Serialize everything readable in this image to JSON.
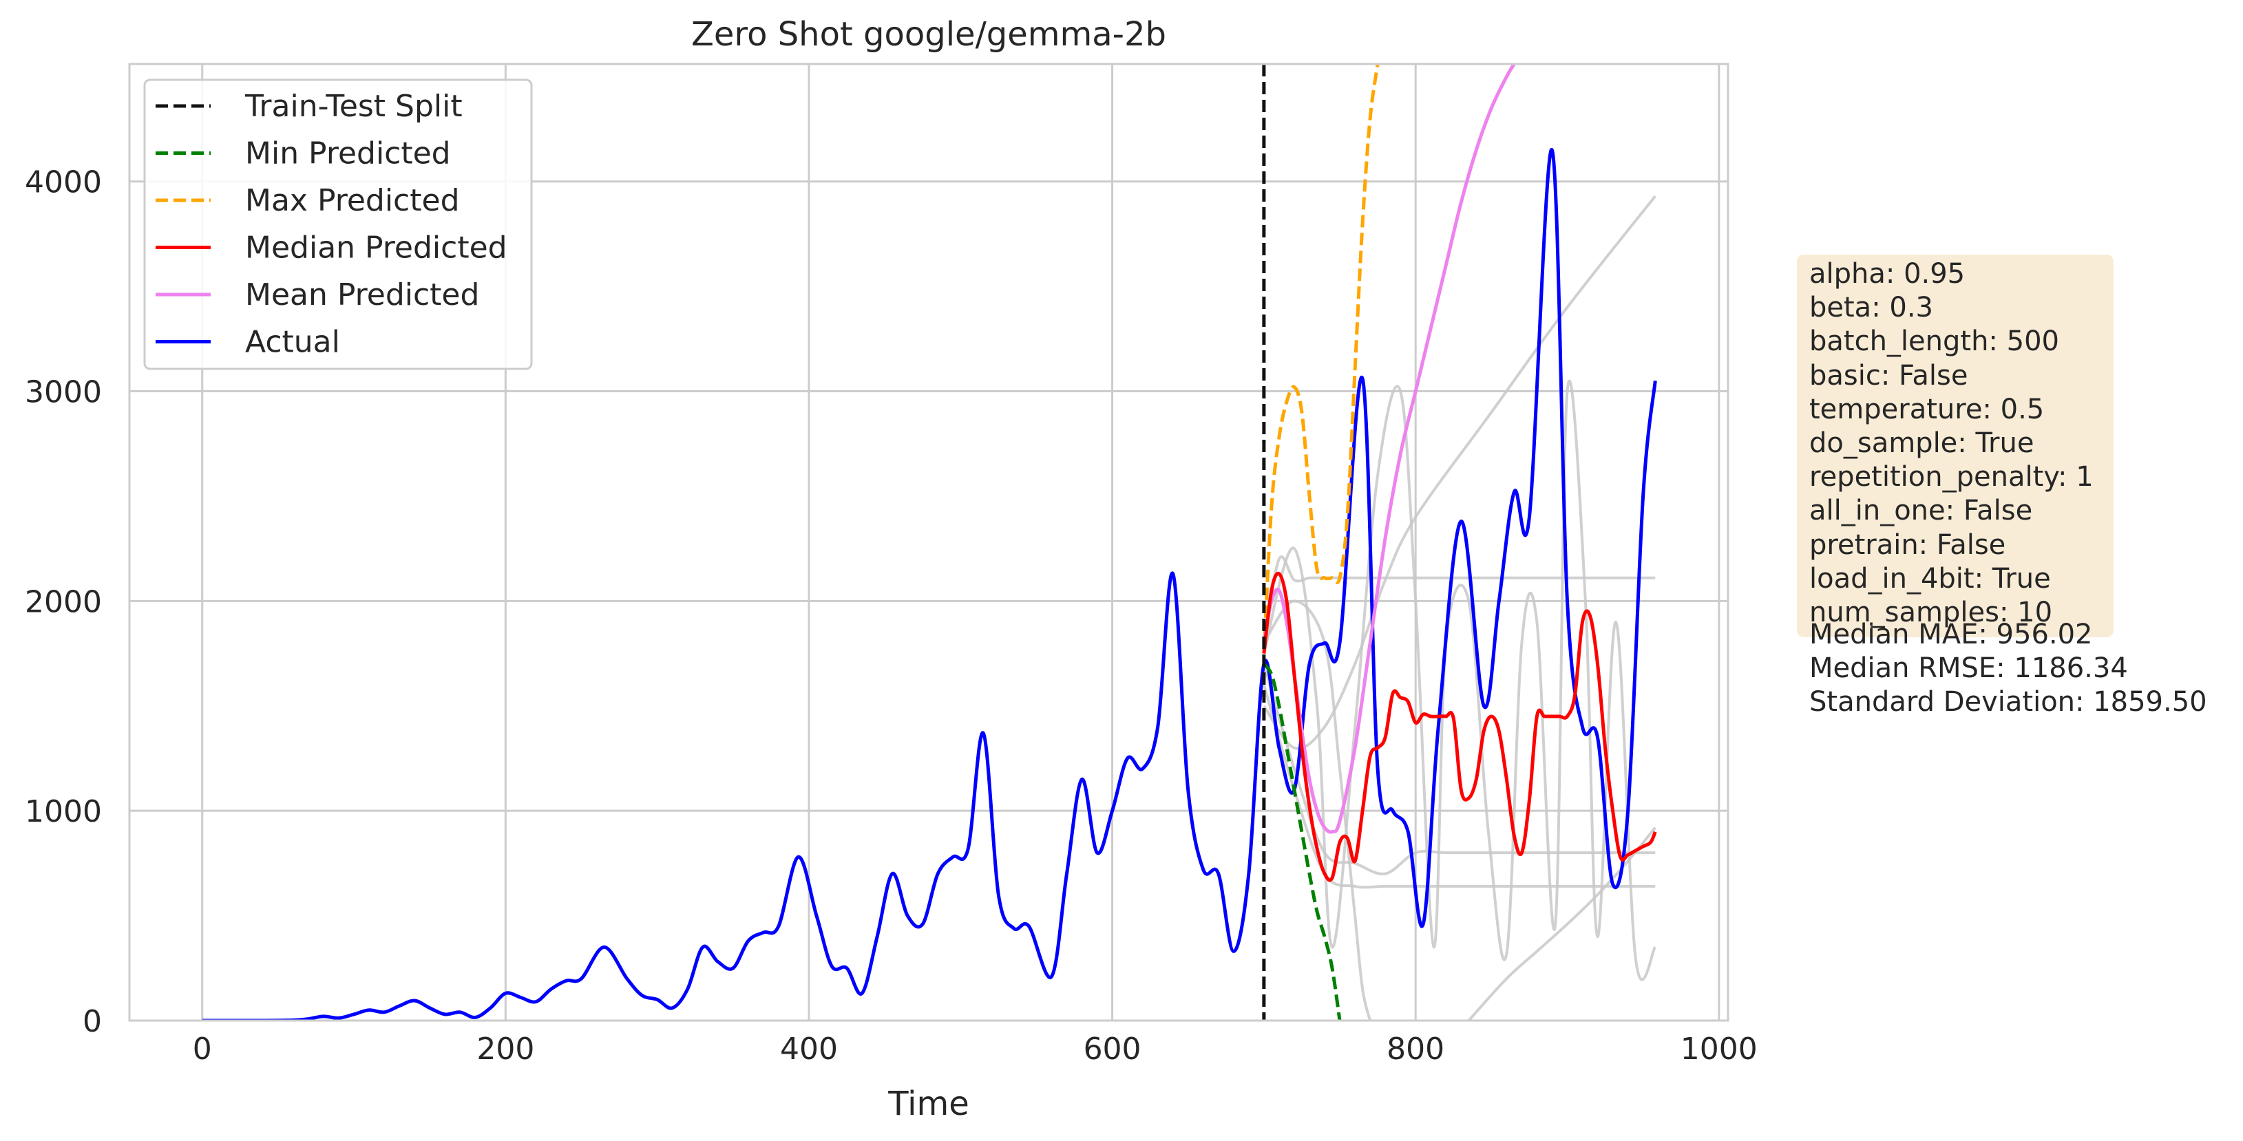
{
  "chart_data": {
    "type": "line",
    "title": "Zero Shot google/gemma-2b",
    "xlabel": "Time",
    "ylabel": "",
    "xlim": [
      -48,
      1006
    ],
    "ylim": [
      0,
      4560
    ],
    "xticks": [
      0,
      200,
      400,
      600,
      800,
      1000
    ],
    "yticks": [
      0,
      1000,
      2000,
      3000,
      4000
    ],
    "grid": true,
    "legend_position": "top-left",
    "split": {
      "name": "Train-Test Split",
      "x": 700,
      "color": "#111111"
    },
    "series": [
      {
        "name": "Train-Test Split",
        "style": "dashed",
        "color": "#111111",
        "x": [],
        "y": []
      },
      {
        "name": "Min Predicted",
        "style": "dashed",
        "color": "#008000",
        "x": [
          700,
          705,
          710,
          715,
          720,
          725,
          730,
          735,
          740,
          745,
          750
        ],
        "y": [
          1700,
          1650,
          1500,
          1300,
          1100,
          900,
          700,
          520,
          400,
          250,
          0
        ]
      },
      {
        "name": "Max Predicted",
        "style": "dashed",
        "color": "#ffa500",
        "x": [
          700,
          705,
          710,
          715,
          720,
          725,
          730,
          735,
          740,
          745,
          750,
          755,
          760,
          765,
          770,
          775
        ],
        "y": [
          1750,
          2450,
          2780,
          2950,
          3020,
          2900,
          2500,
          2150,
          2110,
          2110,
          2110,
          2400,
          3100,
          3800,
          4300,
          4560
        ]
      },
      {
        "name": "Median Predicted",
        "style": "solid",
        "color": "#ff0000",
        "x": [
          700,
          705,
          710,
          715,
          720,
          725,
          730,
          735,
          740,
          745,
          750,
          755,
          760,
          765,
          770,
          775,
          780,
          785,
          790,
          795,
          800,
          805,
          810,
          815,
          820,
          825,
          830,
          835,
          840,
          845,
          850,
          855,
          860,
          865,
          870,
          875,
          880,
          885,
          890,
          895,
          900,
          905,
          910,
          915,
          920,
          925,
          930,
          935,
          940,
          945,
          950,
          955,
          958
        ],
        "y": [
          1750,
          2050,
          2130,
          2000,
          1650,
          1300,
          1020,
          820,
          700,
          680,
          850,
          870,
          760,
          1000,
          1260,
          1300,
          1350,
          1560,
          1540,
          1520,
          1420,
          1460,
          1450,
          1450,
          1450,
          1440,
          1100,
          1060,
          1150,
          1380,
          1450,
          1380,
          1150,
          880,
          800,
          1050,
          1450,
          1450,
          1450,
          1450,
          1450,
          1550,
          1900,
          1930,
          1700,
          1300,
          1000,
          780,
          790,
          810,
          830,
          850,
          900
        ]
      },
      {
        "name": "Mean Predicted",
        "style": "solid",
        "color": "#ee82ee",
        "x": [
          700,
          705,
          710,
          715,
          720,
          725,
          730,
          735,
          740,
          745,
          750,
          760,
          770,
          780,
          790,
          800,
          810,
          820,
          830,
          840,
          850,
          860,
          865
        ],
        "y": [
          1800,
          2000,
          2050,
          1900,
          1650,
          1380,
          1150,
          1000,
          920,
          900,
          950,
          1300,
          1800,
          2300,
          2700,
          3000,
          3300,
          3600,
          3900,
          4150,
          4350,
          4500,
          4560
        ]
      },
      {
        "name": "Actual",
        "style": "solid",
        "color": "#0000ff",
        "x": [
          0,
          20,
          40,
          60,
          70,
          80,
          90,
          100,
          110,
          120,
          130,
          140,
          150,
          160,
          170,
          180,
          190,
          200,
          210,
          220,
          230,
          240,
          250,
          265,
          280,
          290,
          300,
          310,
          320,
          330,
          340,
          350,
          360,
          370,
          380,
          393,
          405,
          415,
          425,
          435,
          445,
          455,
          465,
          475,
          485,
          495,
          505,
          515,
          525,
          535,
          545,
          560,
          570,
          580,
          590,
          600,
          610,
          620,
          630,
          640,
          650,
          660,
          670,
          680,
          690,
          700,
          710,
          720,
          730,
          740,
          750,
          765,
          775,
          785,
          795,
          805,
          815,
          830,
          845,
          855,
          865,
          875,
          890,
          900,
          910,
          920,
          930,
          940,
          950,
          958
        ],
        "y": [
          0,
          0,
          0,
          2,
          8,
          20,
          12,
          30,
          50,
          40,
          70,
          95,
          60,
          30,
          40,
          15,
          60,
          130,
          110,
          90,
          150,
          190,
          200,
          350,
          200,
          120,
          100,
          60,
          150,
          350,
          280,
          250,
          380,
          420,
          450,
          780,
          500,
          260,
          250,
          130,
          400,
          700,
          500,
          460,
          700,
          780,
          820,
          1370,
          600,
          440,
          450,
          210,
          700,
          1150,
          800,
          1000,
          1250,
          1200,
          1400,
          2130,
          1100,
          720,
          700,
          330,
          700,
          1700,
          1300,
          1100,
          1700,
          1800,
          1800,
          3060,
          1200,
          1000,
          900,
          460,
          1400,
          2380,
          1500,
          2000,
          2520,
          2400,
          4150,
          2000,
          1400,
          1350,
          650,
          1000,
          2500,
          3050
        ]
      }
    ],
    "background_samples_color": "#c8c8c8",
    "background_samples": [
      {
        "x": [
          700,
          710,
          720,
          730,
          740,
          750,
          760,
          780,
          800,
          830,
          860,
          900,
          958
        ],
        "y": [
          1800,
          2200,
          2100,
          2110,
          2110,
          2110,
          2110,
          2110,
          2110,
          2110,
          2110,
          2110,
          2110
        ]
      },
      {
        "x": [
          700,
          720,
          740,
          760,
          780,
          800,
          850,
          900,
          958
        ],
        "y": [
          1500,
          1300,
          1400,
          1700,
          2100,
          2400,
          2900,
          3400,
          3930
        ]
      },
      {
        "x": [
          700,
          720,
          740,
          760,
          780,
          800,
          820,
          850,
          870,
          900,
          958
        ],
        "y": [
          1700,
          1200,
          800,
          750,
          700,
          800,
          800,
          800,
          800,
          800,
          800
        ]
      },
      {
        "x": [
          700,
          720,
          740,
          760,
          780,
          800,
          830,
          860,
          900,
          958
        ],
        "y": [
          1600,
          1100,
          700,
          640,
          640,
          640,
          640,
          640,
          640,
          640
        ]
      },
      {
        "x": [
          700,
          720,
          740,
          750,
          760,
          765,
          770
        ],
        "y": [
          1800,
          2000,
          1800,
          1200,
          500,
          150,
          0
        ]
      },
      {
        "x": [
          835,
          860,
          880,
          900,
          920,
          940,
          958
        ],
        "y": [
          0,
          200,
          330,
          460,
          600,
          760,
          920
        ]
      },
      {
        "x": [
          700,
          720,
          735,
          745,
          760,
          775,
          790,
          800,
          812,
          820,
          835,
          848,
          860,
          870,
          880,
          892,
          900,
          912,
          920,
          932,
          945,
          958
        ],
        "y": [
          1750,
          2250,
          1500,
          350,
          1400,
          2600,
          3000,
          2000,
          350,
          1800,
          2000,
          900,
          320,
          1800,
          1900,
          450,
          3000,
          2000,
          400,
          1900,
          300,
          350
        ]
      }
    ]
  },
  "info_panel": {
    "params": [
      "alpha: 0.95",
      "beta: 0.3",
      "batch_length: 500",
      "basic: False",
      "temperature: 0.5",
      "do_sample: True",
      "repetition_penalty: 1",
      "all_in_one: False",
      "pretrain: False",
      "load_in_4bit: True",
      "num_samples: 10"
    ],
    "metrics": [
      "Median MAE: 956.02",
      "Median RMSE: 1186.34",
      "Standard Deviation: 1859.50"
    ]
  }
}
